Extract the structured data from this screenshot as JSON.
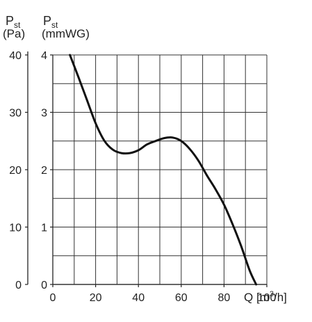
{
  "chart_data": {
    "type": "line",
    "axes": {
      "left_pa": {
        "label_main": "P",
        "label_sub": "st",
        "unit": "(Pa)",
        "ticks": [
          "0",
          "10",
          "20",
          "30",
          "40"
        ],
        "ylim": [
          0,
          40
        ]
      },
      "left_mmwg": {
        "label_main": "P",
        "label_sub": "st",
        "unit": "(mmWG)",
        "ticks": [
          "0",
          "1",
          "2",
          "3",
          "4"
        ],
        "ylim": [
          0,
          4
        ]
      },
      "x": {
        "label_main": "Q [m",
        "label_sup": "3",
        "label_end": "/h]",
        "ticks": [
          "0",
          "20",
          "40",
          "60",
          "80",
          "100"
        ],
        "xlim": [
          0,
          100
        ]
      }
    },
    "grid": true,
    "series": [
      {
        "x": [
          8,
          12,
          16,
          20,
          24,
          28,
          32,
          36,
          40,
          44,
          48,
          52,
          56,
          60,
          64,
          68,
          72,
          76,
          80,
          84,
          88,
          92,
          95
        ],
        "y": [
          40,
          36.1,
          32.1,
          28.1,
          25.1,
          23.5,
          22.9,
          22.9,
          23.4,
          24.4,
          25.0,
          25.5,
          25.6,
          25.0,
          23.6,
          21.6,
          19.0,
          16.6,
          13.9,
          10.5,
          6.7,
          2.4,
          0
        ]
      }
    ]
  }
}
